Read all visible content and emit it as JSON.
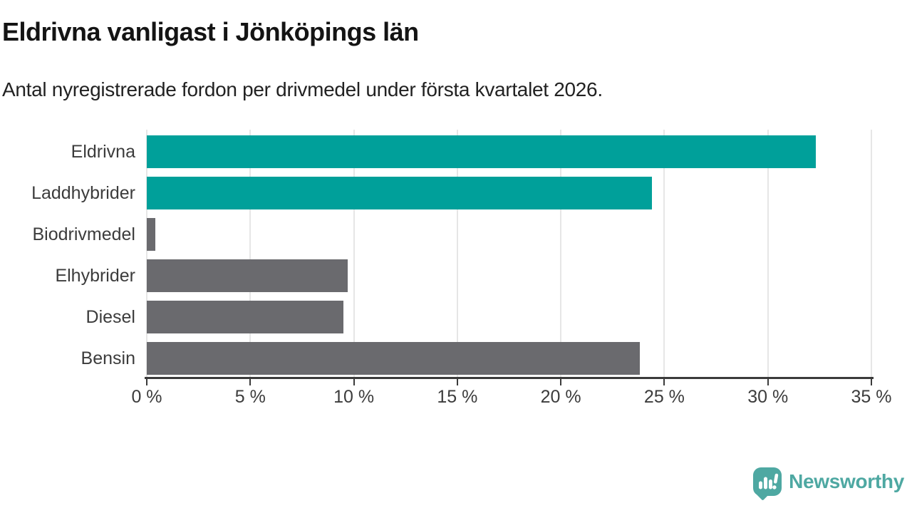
{
  "header": {
    "title": "Eldrivna vanligast i Jönköpings län",
    "subtitle": "Antal nyregistrerade fordon per drivmedel under första kvartalet 2026."
  },
  "chart_data": {
    "type": "bar",
    "orientation": "horizontal",
    "title": "Eldrivna vanligast i Jönköpings län",
    "subtitle": "Antal nyregistrerade fordon per drivmedel under första kvartalet 2026.",
    "categories": [
      "Eldrivna",
      "Laddhybrider",
      "Biodrivmedel",
      "Elhybrider",
      "Diesel",
      "Bensin"
    ],
    "values": [
      32.3,
      24.4,
      0.4,
      9.7,
      9.5,
      23.8
    ],
    "unit": "%",
    "bar_colors": [
      "#00a09a",
      "#00a09a",
      "#6a6a6e",
      "#6a6a6e",
      "#6a6a6e",
      "#6a6a6e"
    ],
    "xlim": [
      0,
      35
    ],
    "xticks": [
      0,
      5,
      10,
      15,
      20,
      25,
      30,
      35
    ],
    "xtick_labels": [
      "0 %",
      "5 %",
      "10 %",
      "15 %",
      "20 %",
      "25 %",
      "30 %",
      "35 %"
    ],
    "grid": true,
    "legend_position": "none",
    "xlabel": "",
    "ylabel": ""
  },
  "branding": {
    "logo_text": "Newsworthy",
    "logo_icon": "bar-chart-speech-bubble-icon",
    "logo_color": "#4ea8a2"
  },
  "colors": {
    "highlight": "#00a09a",
    "neutral": "#6a6a6e",
    "axis": "#3b3b3b",
    "grid": "#e6e6e6",
    "title_text": "#141414",
    "subtitle_text": "#222222",
    "label_text": "#3c3c3c"
  }
}
